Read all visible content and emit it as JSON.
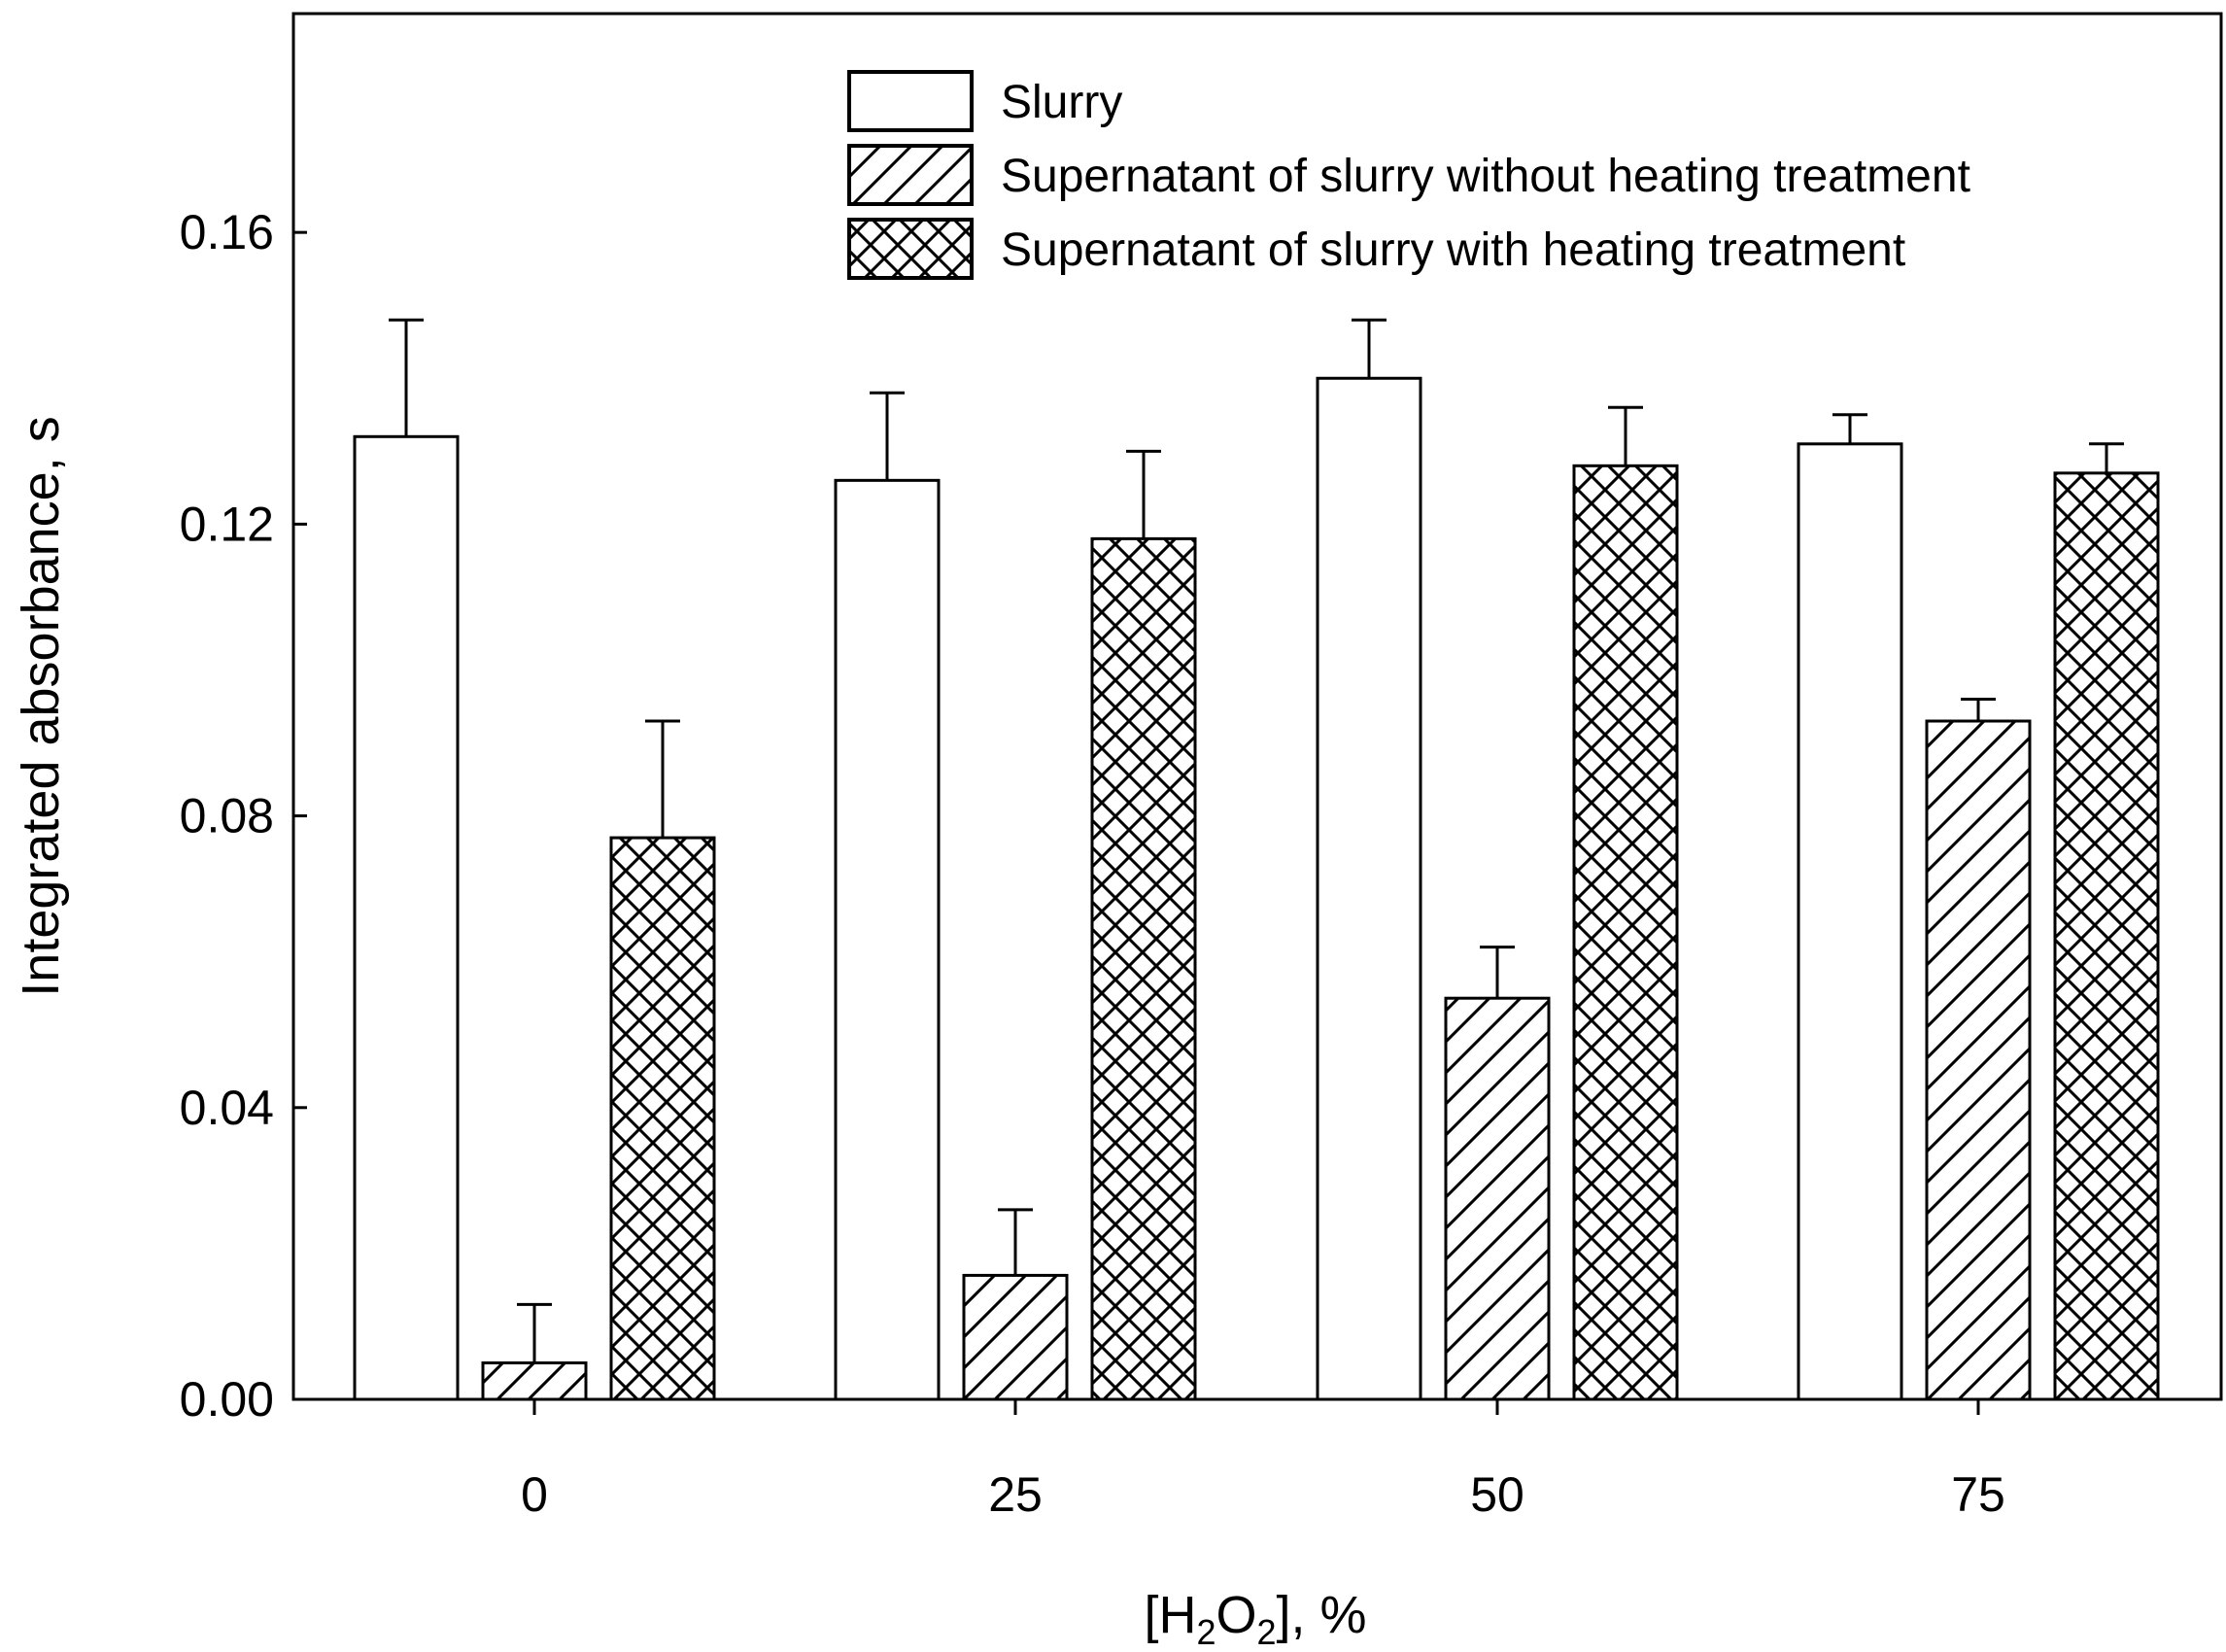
{
  "chart_data": {
    "type": "bar",
    "title": "",
    "xlabel": "[H2O2], %",
    "xlabel_parts": {
      "open": "[H",
      "sub1": "2",
      "mid": "O",
      "sub2": "2",
      "close": "], %"
    },
    "ylabel": "Integrated absorbance, s",
    "ylim": [
      0,
      0.19
    ],
    "yticks": [
      "0.00",
      "0.04",
      "0.08",
      "0.12",
      "0.16"
    ],
    "categories": [
      "0",
      "25",
      "50",
      "75"
    ],
    "series": [
      {
        "name": "Slurry",
        "pattern": "none",
        "values": [
          0.132,
          0.126,
          0.14,
          0.131
        ],
        "errors": [
          0.016,
          0.012,
          0.008,
          0.004
        ]
      },
      {
        "name": "Supernatant of slurry without heating treatment",
        "pattern": "diagonal",
        "values": [
          0.005,
          0.017,
          0.055,
          0.093
        ],
        "errors": [
          0.008,
          0.009,
          0.007,
          0.003
        ]
      },
      {
        "name": "Supernatant of slurry with heating treatment",
        "pattern": "crosshatch",
        "values": [
          0.077,
          0.118,
          0.128,
          0.127
        ],
        "errors": [
          0.016,
          0.012,
          0.008,
          0.004
        ]
      }
    ],
    "legend_position": "top-center",
    "grid": false,
    "colors": {
      "bar_fill": "#ffffff",
      "stroke": "#000000"
    }
  }
}
